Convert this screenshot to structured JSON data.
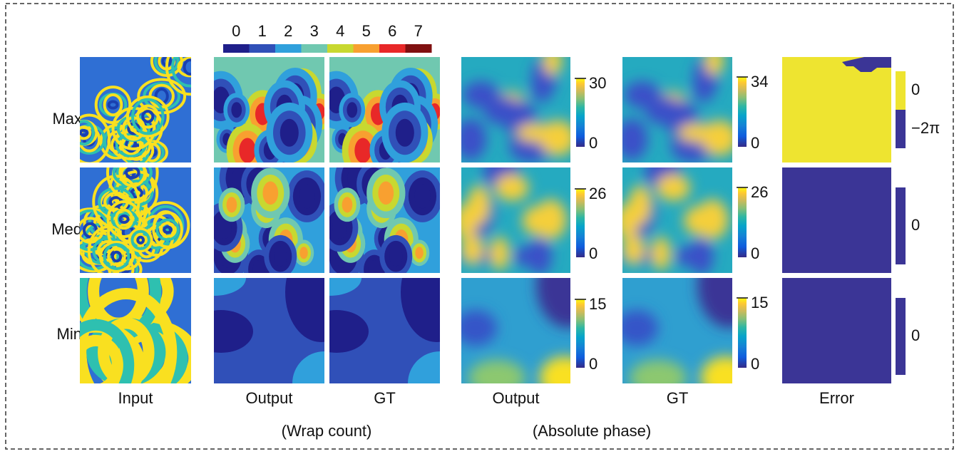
{
  "wrap_count_colorbar": {
    "labels": [
      "0",
      "1",
      "2",
      "3",
      "4",
      "5",
      "6",
      "7"
    ]
  },
  "rows": [
    {
      "label": "Max",
      "abs_output_ticks": [
        "30",
        "0"
      ],
      "abs_gt_ticks": [
        "34",
        "0"
      ],
      "error_ticks": [
        "0",
        "−2π"
      ]
    },
    {
      "label": "Med",
      "abs_output_ticks": [
        "26",
        "0"
      ],
      "abs_gt_ticks": [
        "26",
        "0"
      ],
      "error_ticks": [
        "0"
      ]
    },
    {
      "label": "Min",
      "abs_output_ticks": [
        "15",
        "0"
      ],
      "abs_gt_ticks": [
        "15",
        "0"
      ],
      "error_ticks": [
        "0"
      ]
    }
  ],
  "columns": [
    "Input",
    "Output",
    "GT",
    "Output",
    "GT",
    "Error"
  ],
  "groups": [
    "(Wrap count)",
    "(Absolute phase)"
  ]
}
